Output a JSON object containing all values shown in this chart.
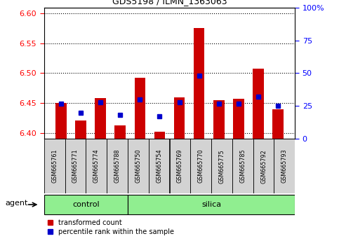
{
  "title": "GDS5198 / ILMN_1363063",
  "samples": [
    "GSM665761",
    "GSM665771",
    "GSM665774",
    "GSM665788",
    "GSM665750",
    "GSM665754",
    "GSM665769",
    "GSM665770",
    "GSM665775",
    "GSM665785",
    "GSM665792",
    "GSM665793"
  ],
  "red_values": [
    6.45,
    6.421,
    6.458,
    6.413,
    6.492,
    6.402,
    6.46,
    6.576,
    6.455,
    6.457,
    6.508,
    6.44
  ],
  "blue_values_pct": [
    27,
    20,
    28,
    18,
    30,
    17,
    28,
    48,
    27,
    27,
    32,
    25
  ],
  "ylim_left": [
    6.39,
    6.61
  ],
  "ylim_right": [
    0,
    100
  ],
  "yticks_left": [
    6.4,
    6.45,
    6.5,
    6.55,
    6.6
  ],
  "yticks_right": [
    0,
    25,
    50,
    75,
    100
  ],
  "ytick_labels_right": [
    "0",
    "25",
    "50",
    "75",
    "100%"
  ],
  "bar_color_red": "#CC0000",
  "bar_color_blue": "#0000CC",
  "base_value": 6.39,
  "legend_red": "transformed count",
  "legend_blue": "percentile rank within the sample",
  "xlabel_agent": "agent",
  "label_control": "control",
  "label_silica": "silica",
  "group_color": "#90EE90",
  "tick_bg_color": "#d3d3d3",
  "n_control": 4,
  "n_silica": 8
}
